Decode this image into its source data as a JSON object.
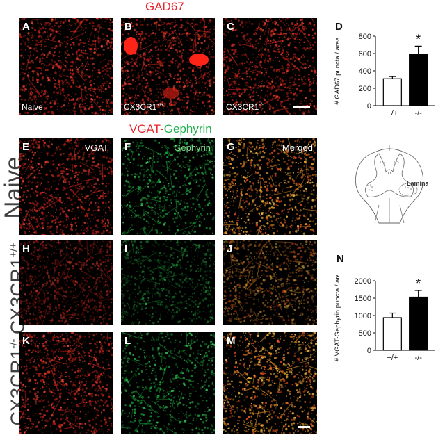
{
  "header": {
    "gad_title": "GAD67",
    "vgat_word": "VGAT",
    "dash": "-",
    "gephyrin_word": "Gephyrin"
  },
  "rows": {
    "naive": "Naive",
    "cx_pp_main": "CX3CR1",
    "cx_pp_sup": "+/+",
    "cx_mm_main": "CX3CR1",
    "cx_mm_sup": "-/-"
  },
  "panels": {
    "A": {
      "letter": "A",
      "tag": "Naive"
    },
    "B": {
      "letter": "B",
      "tag_main": "CX3CR1",
      "tag_sup": "+/+"
    },
    "C": {
      "letter": "C",
      "tag_main": "CX3CR1",
      "tag_sup": "-/-"
    },
    "E": {
      "letter": "E",
      "tag": "VGAT"
    },
    "F": {
      "letter": "F",
      "tag": "Gephyrin"
    },
    "G": {
      "letter": "G",
      "tag": "Merged"
    },
    "H": {
      "letter": "H"
    },
    "I": {
      "letter": "I"
    },
    "J": {
      "letter": "J"
    },
    "K": {
      "letter": "K"
    },
    "L": {
      "letter": "L"
    },
    "M": {
      "letter": "M"
    }
  },
  "diagram": {
    "label": "Lamina IX"
  },
  "colors": {
    "red_title": "#e8262d",
    "green_title": "#1bb24a",
    "red_stain": "#e0281c",
    "green_stain": "#1fa83c",
    "merged": "#f0a030"
  },
  "chart_data": [
    {
      "panel_letter": "D",
      "type": "bar",
      "categories": [
        "+/+",
        "-/-"
      ],
      "values": [
        310,
        590
      ],
      "errors": [
        25,
        95
      ],
      "ylabel": "# GAD67 puncta / area",
      "ylim": [
        0,
        800
      ],
      "yticks": [
        0,
        200,
        400,
        600,
        800
      ],
      "bar_colors": [
        "#ffffff",
        "#000000"
      ],
      "significance": [
        "",
        "*"
      ]
    },
    {
      "panel_letter": "N",
      "type": "bar",
      "categories": [
        "+/+",
        "-/-"
      ],
      "values": [
        940,
        1530
      ],
      "errors": [
        130,
        190
      ],
      "ylabel": "# VGAT-Gephyrin puncta / area",
      "ylim": [
        0,
        2000
      ],
      "yticks": [
        0,
        500,
        1000,
        1500,
        2000
      ],
      "bar_colors": [
        "#ffffff",
        "#000000"
      ],
      "significance": [
        "",
        "*"
      ]
    }
  ]
}
